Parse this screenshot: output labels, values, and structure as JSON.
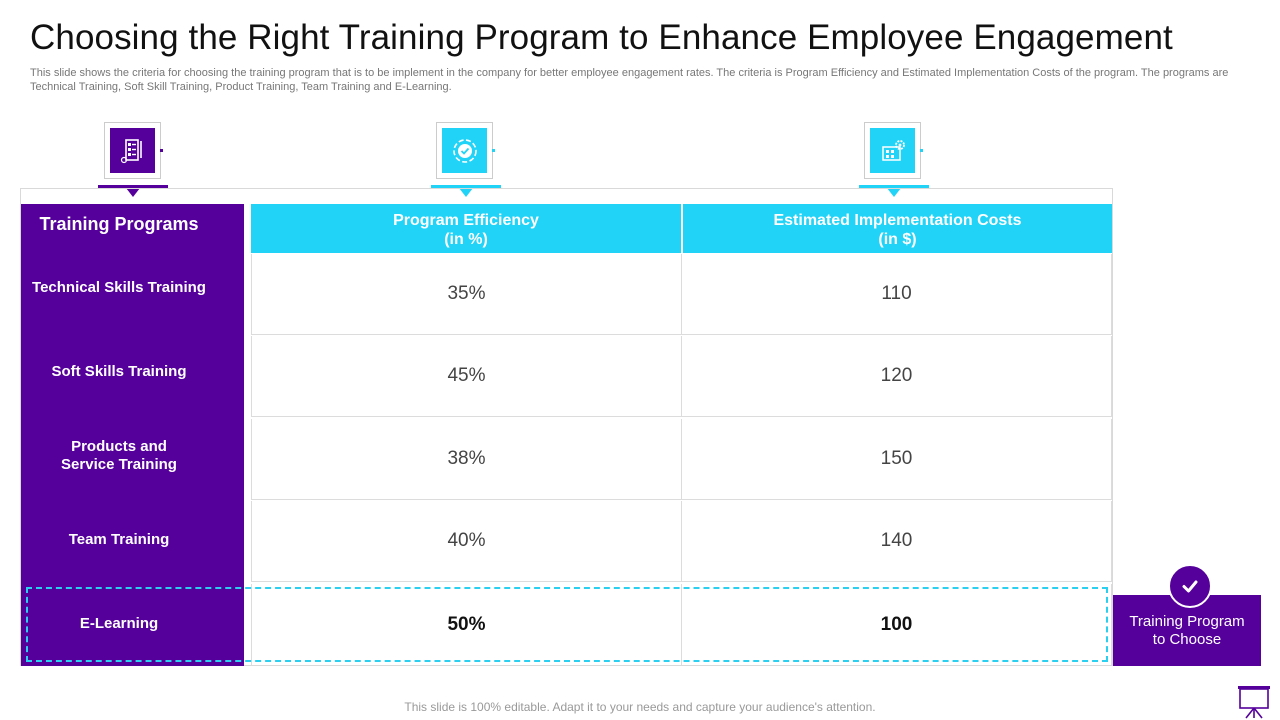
{
  "slide": {
    "title": "Choosing the Right Training Program to Enhance Employee Engagement",
    "subtitle": "This slide shows the criteria for choosing the training program that is to be implement in the company for better employee engagement rates. The criteria is Program Efficiency and Estimated Implementation Costs of the program. The programs are Technical Training, Soft Skill Training, Product Training, Team Training and E-Learning.",
    "footer": "This slide is 100% editable. Adapt it to your needs and capture your audience's attention."
  },
  "table": {
    "row_header": "Training Programs",
    "columns": [
      {
        "line1": "Program Efficiency",
        "line2": "(in %)"
      },
      {
        "line1": "Estimated Implementation Costs",
        "line2": "(in $)"
      }
    ],
    "rows": [
      {
        "program_line1": "Technical Skills Training",
        "program_line2": "",
        "efficiency": "35%",
        "cost": "110"
      },
      {
        "program_line1": "Soft Skills Training",
        "program_line2": "",
        "efficiency": "45%",
        "cost": "120"
      },
      {
        "program_line1": "Products and",
        "program_line2": "Service Training",
        "efficiency": "38%",
        "cost": "150"
      },
      {
        "program_line1": "Team Training",
        "program_line2": "",
        "efficiency": "40%",
        "cost": "140"
      },
      {
        "program_line1": "E-Learning",
        "program_line2": "",
        "efficiency": "50%",
        "cost": "100"
      }
    ],
    "highlighted_row": "E-Learning"
  },
  "callout": {
    "line1": "Training Program",
    "line2": "to Choose"
  },
  "icons": {
    "programs": "checklist-icon",
    "efficiency": "gear-check-icon",
    "cost": "building-gear-icon",
    "check": "check-icon",
    "presentation": "presentation-board-icon"
  },
  "colors": {
    "purple": "#55009b",
    "cyan": "#22d3f8",
    "dashed": "#2bd0f0"
  }
}
